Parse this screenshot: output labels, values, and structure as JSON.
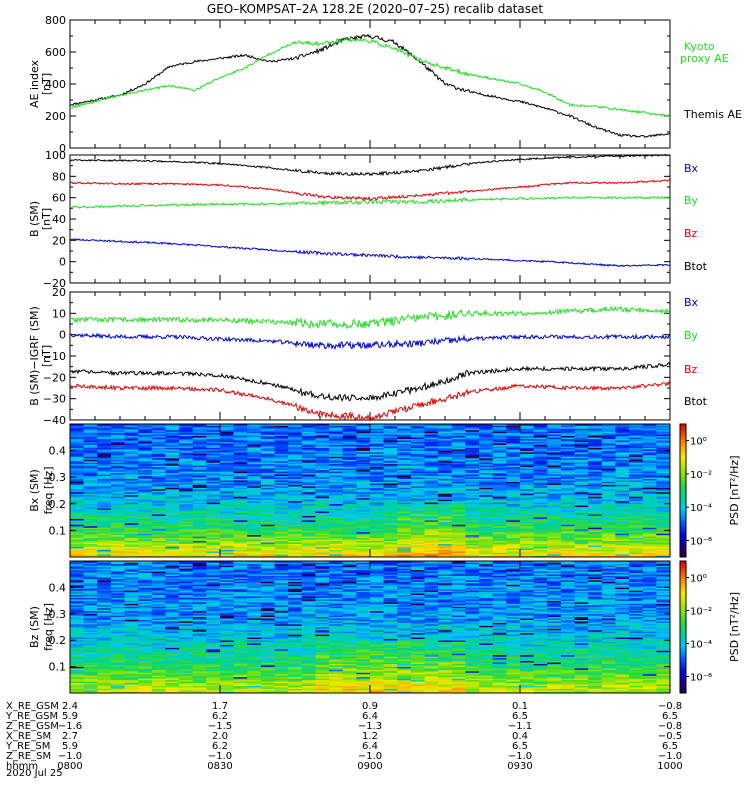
{
  "title": "GEO–KOMPSAT–2A 128.2E (2020–07–25) recalib dataset",
  "colors": {
    "black": "#000000",
    "red": "#dd0000",
    "green": "#22dd22",
    "blue": "#0000cc",
    "kyoto": "#22dd22"
  },
  "time_ticks": [
    "0800",
    "0830",
    "0900",
    "0930",
    "1000"
  ],
  "ephemeris": {
    "rows": [
      {
        "label": "X_RE_GSM",
        "values": [
          "2.4",
          "1.7",
          "0.9",
          "0.1",
          "−0.8"
        ]
      },
      {
        "label": "Y_RE_GSM",
        "values": [
          "5.9",
          "6.2",
          "6.4",
          "6.5",
          "6.5"
        ]
      },
      {
        "label": "Z_RE_GSM",
        "values": [
          "−1.6",
          "−1.5",
          "−1.3",
          "−1.1",
          "−0.8"
        ]
      },
      {
        "label": "X_RE_SM",
        "values": [
          "2.7",
          "2.0",
          "1.2",
          "0.4",
          "−0.5"
        ]
      },
      {
        "label": "Y_RE_SM",
        "values": [
          "5.9",
          "6.2",
          "6.4",
          "6.5",
          "6.5"
        ]
      },
      {
        "label": "Z_RE_SM",
        "values": [
          "−1.0",
          "−1.0",
          "−1.0",
          "−1.0",
          "−1.0"
        ]
      },
      {
        "label": "hhmm",
        "values": [
          "0800",
          "0830",
          "0900",
          "0930",
          "1000"
        ]
      }
    ],
    "date": "2020 Jul 25"
  },
  "chart_data": [
    {
      "type": "line",
      "id": "ae",
      "ylabel": "AE index",
      "yunit": "[nT]",
      "ylim": [
        0,
        800
      ],
      "yticks": [
        "0",
        "200",
        "400",
        "600",
        "800"
      ],
      "series": [
        {
          "name": "Themis AE",
          "color": "#000000",
          "x": [
            0,
            5,
            10,
            15,
            20,
            25,
            30,
            35,
            40,
            45,
            50,
            55,
            60,
            65,
            70,
            75,
            80,
            85,
            90,
            95,
            100,
            105,
            110,
            115,
            120
          ],
          "values": [
            270,
            300,
            330,
            400,
            510,
            540,
            560,
            580,
            540,
            560,
            610,
            680,
            700,
            660,
            540,
            400,
            350,
            320,
            290,
            250,
            200,
            130,
            80,
            70,
            90
          ]
        },
        {
          "name": "Kyoto proxy AE",
          "color": "#22dd22",
          "x": [
            0,
            5,
            10,
            15,
            20,
            25,
            30,
            35,
            40,
            45,
            50,
            55,
            60,
            65,
            70,
            75,
            80,
            85,
            90,
            95,
            100,
            105,
            110,
            115,
            120
          ],
          "values": [
            250,
            290,
            330,
            360,
            390,
            360,
            440,
            500,
            590,
            660,
            650,
            680,
            670,
            620,
            550,
            500,
            460,
            430,
            400,
            350,
            270,
            260,
            240,
            220,
            200
          ]
        }
      ]
    },
    {
      "type": "line",
      "id": "b",
      "ylabel": "B (SM)",
      "yunit": "[nT]",
      "ylim": [
        -20,
        100
      ],
      "yticks": [
        "−20",
        "0",
        "20",
        "40",
        "60",
        "80",
        "100"
      ],
      "series": [
        {
          "name": "Bx",
          "color": "#0000cc",
          "x": [
            0,
            10,
            20,
            30,
            40,
            50,
            60,
            70,
            80,
            90,
            100,
            110,
            120
          ],
          "values": [
            21,
            19,
            17,
            14,
            11,
            8,
            6,
            4,
            3,
            1,
            -1,
            -4,
            -3
          ]
        },
        {
          "name": "By",
          "color": "#22dd22",
          "x": [
            0,
            10,
            20,
            30,
            40,
            50,
            60,
            70,
            80,
            90,
            100,
            110,
            120
          ],
          "values": [
            51,
            52,
            53,
            54,
            54,
            55,
            56,
            56,
            58,
            59,
            60,
            60,
            60
          ]
        },
        {
          "name": "Bz",
          "color": "#dd0000",
          "x": [
            0,
            10,
            20,
            30,
            40,
            50,
            60,
            70,
            80,
            90,
            100,
            110,
            120
          ],
          "values": [
            74,
            73,
            73,
            72,
            68,
            61,
            59,
            62,
            66,
            70,
            74,
            74,
            76
          ]
        },
        {
          "name": "Btot",
          "color": "#000000",
          "x": [
            0,
            10,
            20,
            30,
            40,
            50,
            60,
            70,
            80,
            90,
            100,
            110,
            120
          ],
          "values": [
            95,
            95,
            94,
            92,
            88,
            83,
            82,
            85,
            92,
            96,
            98,
            99,
            100
          ]
        }
      ]
    },
    {
      "type": "line",
      "id": "dev",
      "ylabel": "B (SM)−IGRF (SM)",
      "yunit": "[nT]",
      "ylim": [
        -40,
        20
      ],
      "yticks": [
        "−40",
        "−30",
        "−20",
        "−10",
        "0",
        "10",
        "20"
      ],
      "series": [
        {
          "name": "Bx",
          "color": "#0000cc",
          "x": [
            0,
            10,
            20,
            30,
            40,
            50,
            60,
            70,
            80,
            90,
            100,
            110,
            120
          ],
          "values": [
            0,
            -1,
            -1,
            -2,
            -3,
            -5,
            -5,
            -4,
            -2,
            -1,
            -1,
            -1,
            -1
          ]
        },
        {
          "name": "By",
          "color": "#22dd22",
          "x": [
            0,
            10,
            20,
            30,
            40,
            50,
            60,
            70,
            80,
            90,
            100,
            110,
            120
          ],
          "values": [
            7,
            7,
            7,
            7,
            6,
            5,
            5,
            8,
            10,
            10,
            11,
            12,
            11
          ]
        },
        {
          "name": "Bz",
          "color": "#dd0000",
          "x": [
            0,
            10,
            20,
            30,
            40,
            50,
            60,
            70,
            80,
            90,
            100,
            110,
            120
          ],
          "values": [
            -24,
            -25,
            -25,
            -26,
            -30,
            -37,
            -39,
            -33,
            -27,
            -24,
            -25,
            -25,
            -23
          ]
        },
        {
          "name": "Btot",
          "color": "#000000",
          "x": [
            0,
            10,
            20,
            30,
            40,
            50,
            60,
            70,
            80,
            90,
            100,
            110,
            120
          ],
          "values": [
            -17,
            -18,
            -18,
            -19,
            -23,
            -29,
            -30,
            -25,
            -18,
            -16,
            -16,
            -16,
            -14
          ]
        }
      ]
    },
    {
      "type": "heatmap",
      "id": "spec_bx",
      "ylabel": "Bx (SM)",
      "yunit": "freq [Hz]",
      "ylim": [
        0,
        0.5
      ],
      "yticks": [
        "0.1",
        "0.2",
        "0.3",
        "0.4"
      ],
      "colorbar": {
        "label": "PSD [nT²/Hz]",
        "ticks": [
          "10⁰",
          "10⁻²",
          "10⁻⁴",
          "10⁻⁶"
        ],
        "range_exp": [
          -7,
          1
        ]
      },
      "mean_log_psd": [
        -1,
        -2.8,
        -4,
        -4.6,
        -4.8
      ],
      "freq_levels": [
        0.01,
        0.1,
        0.2,
        0.3,
        0.45
      ],
      "enhanced_window_min": [
        65,
        80
      ]
    },
    {
      "type": "heatmap",
      "id": "spec_bz",
      "ylabel": "Bz (SM)",
      "yunit": "freq [Hz]",
      "ylim": [
        0,
        0.5
      ],
      "yticks": [
        "0.1",
        "0.2",
        "0.3",
        "0.4"
      ],
      "colorbar": {
        "label": "PSD [nT²/Hz]",
        "ticks": [
          "10⁰",
          "10⁻²",
          "10⁻⁴",
          "10⁻⁶"
        ],
        "range_exp": [
          -7,
          1
        ]
      },
      "mean_log_psd": [
        -1.5,
        -2.9,
        -3.9,
        -4.5,
        -4.7
      ],
      "freq_levels": [
        0.01,
        0.1,
        0.2,
        0.3,
        0.45
      ],
      "enhanced_window_min": [
        50,
        80
      ]
    }
  ]
}
